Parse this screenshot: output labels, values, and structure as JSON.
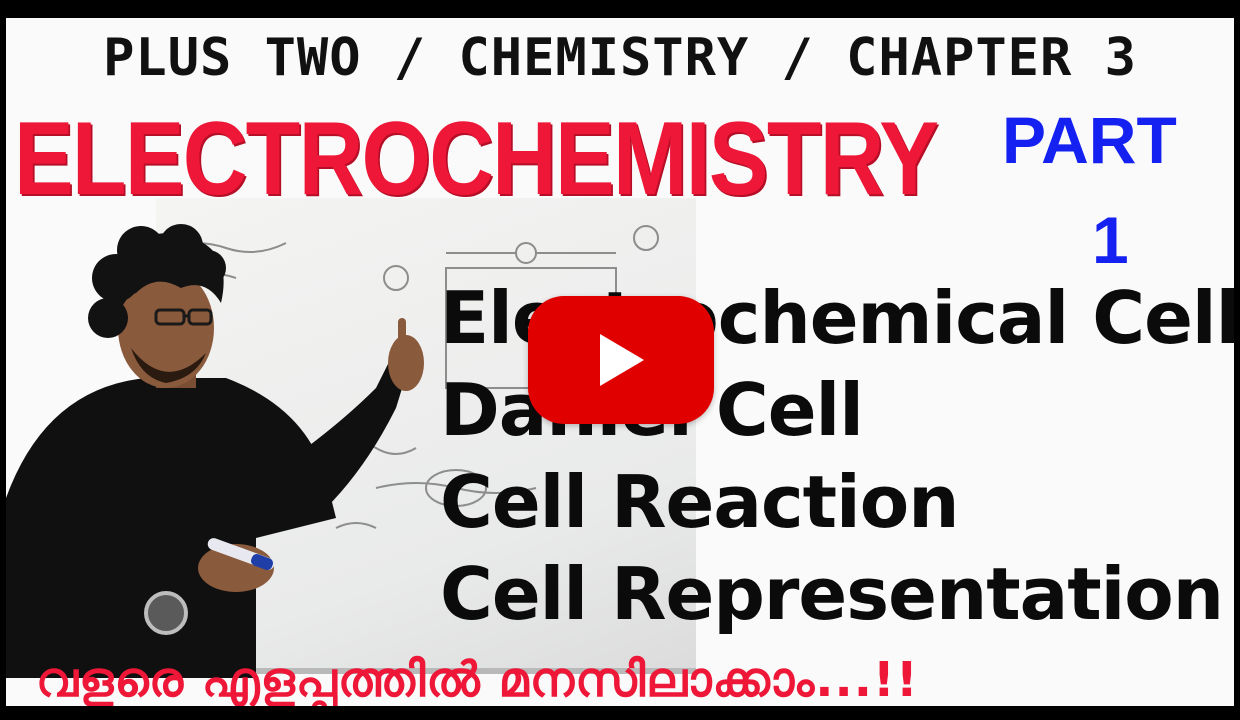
{
  "thumbnail": {
    "series_line": "PLUS TWO / CHEMISTRY / CHAPTER 3",
    "main_title": "ELECTROCHEMISTRY",
    "part_label": "PART",
    "part_number": "1",
    "topics": [
      "Electrochemical Cell",
      "Daniel Cell",
      "Cell Reaction",
      "Cell Representation"
    ],
    "tagline": "വളരെ എളുപ്പത്തിൽ മനസിലാക്കാം...!!",
    "colors": {
      "title_red": "#ee1738",
      "part_blue": "#1421f0",
      "play_red": "#e00000",
      "frame": "#000000"
    }
  },
  "player": {
    "play_icon": "play-triangle-icon"
  }
}
